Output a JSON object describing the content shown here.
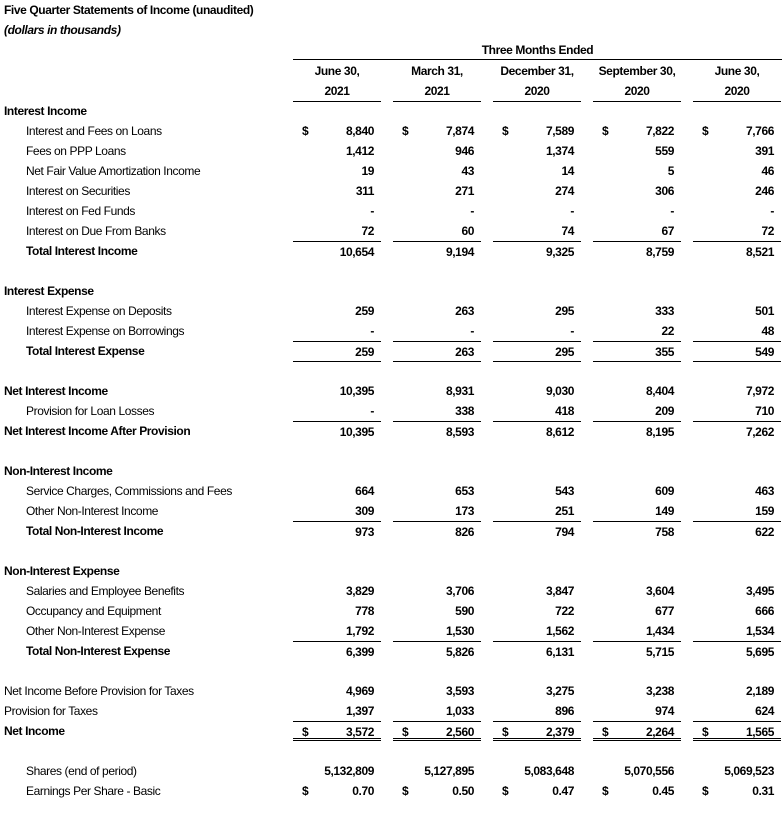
{
  "title": "Five Quarter Statements of Income (unaudited)",
  "subtitle": "(dollars in thousands)",
  "period_group": "Three Months Ended",
  "columns": [
    {
      "line1": "June 30,",
      "line2": "2021"
    },
    {
      "line1": "March 31,",
      "line2": "2021"
    },
    {
      "line1": "December 31,",
      "line2": "2020"
    },
    {
      "line1": "September 30,",
      "line2": "2020"
    },
    {
      "line1": "June 30,",
      "line2": "2020"
    }
  ],
  "currency_symbol": "$",
  "rows": [
    {
      "label": "Interest Income",
      "type": "section"
    },
    {
      "label": "Interest and Fees on Loans",
      "type": "item",
      "dollar": true,
      "values": [
        "8,840",
        "7,874",
        "7,589",
        "7,822",
        "7,766"
      ]
    },
    {
      "label": "Fees on PPP Loans",
      "type": "item",
      "values": [
        "1,412",
        "946",
        "1,374",
        "559",
        "391"
      ]
    },
    {
      "label": "Net Fair Value Amortization Income",
      "type": "item",
      "values": [
        "19",
        "43",
        "14",
        "5",
        "46"
      ]
    },
    {
      "label": "Interest on Securities",
      "type": "item",
      "values": [
        "311",
        "271",
        "274",
        "306",
        "246"
      ]
    },
    {
      "label": "Interest on Fed Funds",
      "type": "item",
      "values": [
        "-",
        "-",
        "-",
        "-",
        "-"
      ]
    },
    {
      "label": "Interest on Due From Banks",
      "type": "item",
      "values": [
        "72",
        "60",
        "74",
        "67",
        "72"
      ]
    },
    {
      "label": "Total Interest Income",
      "type": "total",
      "rule": true,
      "values": [
        "10,654",
        "9,194",
        "9,325",
        "8,759",
        "8,521"
      ]
    },
    {
      "type": "blank"
    },
    {
      "label": "Interest Expense",
      "type": "section"
    },
    {
      "label": "Interest Expense on Deposits",
      "type": "item",
      "values": [
        "259",
        "263",
        "295",
        "333",
        "501"
      ]
    },
    {
      "label": "Interest Expense on Borrowings",
      "type": "item",
      "values": [
        "-",
        "-",
        "-",
        "22",
        "48"
      ]
    },
    {
      "label": "Total Interest Expense",
      "type": "total",
      "rule": true,
      "values": [
        "259",
        "263",
        "295",
        "355",
        "549"
      ]
    },
    {
      "type": "blank",
      "rule": true
    },
    {
      "label": "Net Interest Income",
      "type": "total-flush",
      "values": [
        "10,395",
        "8,931",
        "9,030",
        "8,404",
        "7,972"
      ]
    },
    {
      "label": "Provision for Loan Losses",
      "type": "item",
      "values": [
        "-",
        "338",
        "418",
        "209",
        "710"
      ]
    },
    {
      "label": "Net Interest Income After Provision",
      "type": "total-flush",
      "rule": true,
      "values": [
        "10,395",
        "8,593",
        "8,612",
        "8,195",
        "7,262"
      ]
    },
    {
      "type": "blank"
    },
    {
      "label": "Non-Interest Income",
      "type": "section"
    },
    {
      "label": "Service Charges, Commissions and Fees",
      "type": "item",
      "values": [
        "664",
        "653",
        "543",
        "609",
        "463"
      ]
    },
    {
      "label": "Other Non-Interest Income",
      "type": "item",
      "values": [
        "309",
        "173",
        "251",
        "149",
        "159"
      ]
    },
    {
      "label": "Total Non-Interest Income",
      "type": "total",
      "rule": true,
      "values": [
        "973",
        "826",
        "794",
        "758",
        "622"
      ]
    },
    {
      "type": "blank"
    },
    {
      "label": "Non-Interest Expense",
      "type": "section"
    },
    {
      "label": "Salaries and Employee Benefits",
      "type": "item",
      "values": [
        "3,829",
        "3,706",
        "3,847",
        "3,604",
        "3,495"
      ]
    },
    {
      "label": "Occupancy and Equipment",
      "type": "item",
      "values": [
        "778",
        "590",
        "722",
        "677",
        "666"
      ]
    },
    {
      "label": "Other Non-Interest Expense",
      "type": "item",
      "values": [
        "1,792",
        "1,530",
        "1,562",
        "1,434",
        "1,534"
      ]
    },
    {
      "label": "Total Non-Interest Expense",
      "type": "total",
      "rule": true,
      "values": [
        "6,399",
        "5,826",
        "6,131",
        "5,715",
        "5,695"
      ]
    },
    {
      "type": "blank"
    },
    {
      "label": "Net Income Before Provision for Taxes",
      "type": "flush",
      "values": [
        "4,969",
        "3,593",
        "3,275",
        "3,238",
        "2,189"
      ]
    },
    {
      "label": "Provision for Taxes",
      "type": "flush",
      "values": [
        "1,397",
        "1,033",
        "896",
        "974",
        "624"
      ]
    },
    {
      "label": "Net Income",
      "type": "total-flush",
      "rule": true,
      "double": true,
      "dollar": true,
      "values": [
        "3,572",
        "2,560",
        "2,379",
        "2,264",
        "1,565"
      ]
    },
    {
      "type": "blank"
    },
    {
      "label": "Shares (end of period)",
      "type": "item",
      "values": [
        "5,132,809",
        "5,127,895",
        "5,083,648",
        "5,070,556",
        "5,069,523"
      ]
    },
    {
      "label": "Earnings Per Share - Basic",
      "type": "item",
      "dollar": true,
      "values": [
        "0.70",
        "0.50",
        "0.47",
        "0.45",
        "0.31"
      ]
    }
  ]
}
